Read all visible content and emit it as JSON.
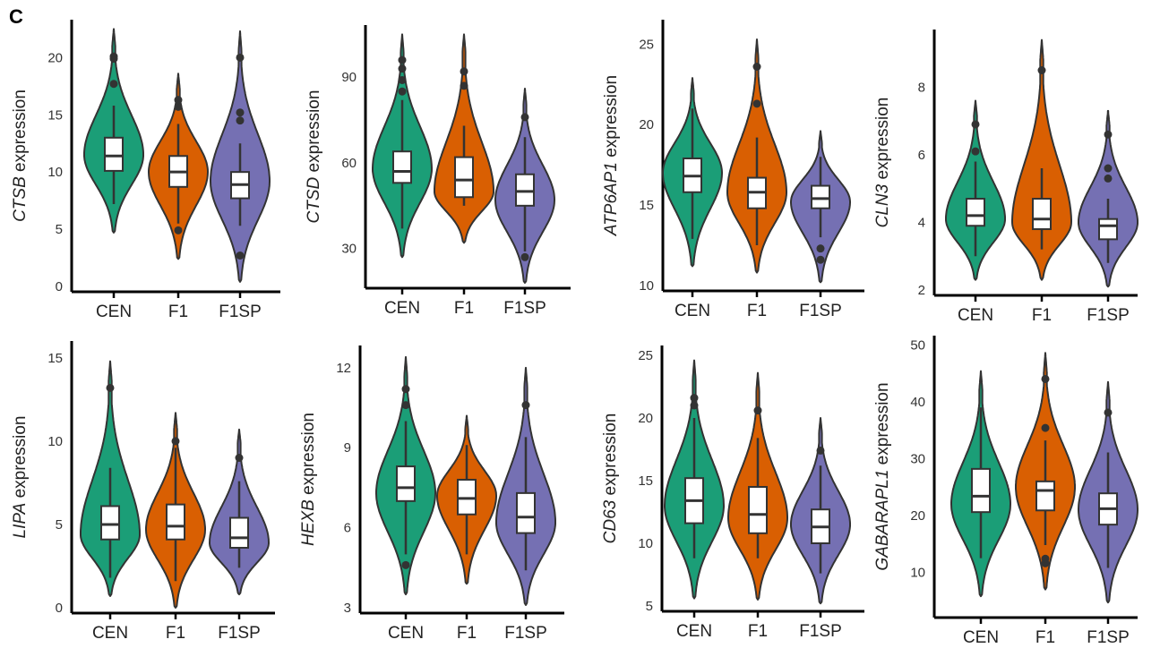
{
  "figure": {
    "panel_letter": "C"
  },
  "chart_data": [
    {
      "type": "violin",
      "gene": "CTSB",
      "ylabel_suffix": " expression",
      "categories": [
        "CEN",
        "F1",
        "F1SP"
      ],
      "yticks": [
        0,
        5,
        10,
        15,
        20
      ],
      "ylim": [
        0,
        23
      ],
      "colors": [
        "#1B9E77",
        "#D95F02",
        "#7570B3"
      ],
      "groups": [
        {
          "name": "CEN",
          "min": 4.7,
          "max": 22.5,
          "q1": 10.1,
          "median": 11.4,
          "q3": 13.0,
          "whisker_low": 7.2,
          "whisker_high": 15.8,
          "widest": 11.5,
          "outliers": [
            17.7,
            19.9,
            20.1
          ]
        },
        {
          "name": "F1",
          "min": 2.4,
          "max": 18.6,
          "q1": 8.7,
          "median": 10.0,
          "q3": 11.4,
          "whisker_low": 5.5,
          "whisker_high": 14.2,
          "widest": 10.0,
          "outliers": [
            4.9,
            15.7,
            16.3
          ]
        },
        {
          "name": "F1SP",
          "min": 0.4,
          "max": 22.3,
          "q1": 7.7,
          "median": 8.9,
          "q3": 10.0,
          "whisker_low": 5.3,
          "whisker_high": 12.5,
          "widest": 9.2,
          "outliers": [
            2.7,
            14.5,
            15.2,
            20.0
          ]
        }
      ]
    },
    {
      "type": "violin",
      "gene": "CTSD",
      "ylabel_suffix": " expression",
      "categories": [
        "CEN",
        "F1",
        "F1SP"
      ],
      "yticks": [
        30,
        60,
        90
      ],
      "ylim": [
        18,
        107
      ],
      "colors": [
        "#1B9E77",
        "#D95F02",
        "#7570B3"
      ],
      "groups": [
        {
          "name": "CEN",
          "min": 27,
          "max": 105,
          "q1": 53,
          "median": 57,
          "q3": 64,
          "whisker_low": 37,
          "whisker_high": 82,
          "widest": 58,
          "outliers": [
            85,
            89,
            93,
            96
          ]
        },
        {
          "name": "F1",
          "min": 32,
          "max": 105,
          "q1": 48,
          "median": 54,
          "q3": 62,
          "whisker_low": 45,
          "whisker_high": 73,
          "widest": 50,
          "outliers": [
            87,
            92
          ]
        },
        {
          "name": "F1SP",
          "min": 18,
          "max": 86,
          "q1": 45,
          "median": 50,
          "q3": 56,
          "whisker_low": 29,
          "whisker_high": 69,
          "widest": 47,
          "outliers": [
            27,
            76
          ]
        }
      ]
    },
    {
      "type": "violin",
      "gene": "ATP6AP1",
      "ylabel_suffix": " expression",
      "categories": [
        "CEN",
        "F1",
        "F1SP"
      ],
      "yticks": [
        10,
        15,
        20,
        25
      ],
      "ylim": [
        10,
        26.3
      ],
      "colors": [
        "#1B9E77",
        "#D95F02",
        "#7570B3"
      ],
      "groups": [
        {
          "name": "CEN",
          "min": 11.2,
          "max": 22.9,
          "q1": 15.8,
          "median": 16.8,
          "q3": 17.9,
          "whisker_low": 12.9,
          "whisker_high": 21.0,
          "widest": 17.0,
          "outliers": []
        },
        {
          "name": "F1",
          "min": 10.8,
          "max": 25.3,
          "q1": 14.8,
          "median": 15.8,
          "q3": 16.7,
          "whisker_low": 12.5,
          "whisker_high": 19.2,
          "widest": 15.8,
          "outliers": [
            21.3,
            23.6
          ]
        },
        {
          "name": "F1SP",
          "min": 10.2,
          "max": 19.6,
          "q1": 14.8,
          "median": 15.4,
          "q3": 16.2,
          "whisker_low": 13.0,
          "whisker_high": 18.0,
          "widest": 15.2,
          "outliers": [
            11.6,
            12.3
          ]
        }
      ]
    },
    {
      "type": "violin",
      "gene": "CLN3",
      "ylabel_suffix": " expression",
      "categories": [
        "CEN",
        "F1",
        "F1SP"
      ],
      "yticks": [
        2,
        4,
        6,
        8
      ],
      "ylim": [
        2,
        9.6
      ],
      "colors": [
        "#1B9E77",
        "#D95F02",
        "#7570B3"
      ],
      "groups": [
        {
          "name": "CEN",
          "min": 2.3,
          "max": 7.6,
          "q1": 3.9,
          "median": 4.2,
          "q3": 4.7,
          "whisker_low": 3.0,
          "whisker_high": 5.8,
          "widest": 4.1,
          "outliers": [
            6.1,
            6.9
          ]
        },
        {
          "name": "F1",
          "min": 2.3,
          "max": 9.4,
          "q1": 3.8,
          "median": 4.1,
          "q3": 4.7,
          "whisker_low": 3.2,
          "whisker_high": 5.6,
          "widest": 4.0,
          "outliers": [
            8.5
          ]
        },
        {
          "name": "F1SP",
          "min": 2.1,
          "max": 7.3,
          "q1": 3.5,
          "median": 3.9,
          "q3": 4.1,
          "whisker_low": 2.8,
          "whisker_high": 4.7,
          "widest": 4.0,
          "outliers": [
            5.3,
            5.6,
            6.6
          ]
        }
      ]
    },
    {
      "type": "violin",
      "gene": "LIPA",
      "ylabel_suffix": " expression",
      "categories": [
        "CEN",
        "F1",
        "F1SP"
      ],
      "yticks": [
        0,
        5,
        10,
        15
      ],
      "ylim": [
        0,
        15.8
      ],
      "colors": [
        "#1B9E77",
        "#D95F02",
        "#7570B3"
      ],
      "groups": [
        {
          "name": "CEN",
          "min": 0.7,
          "max": 14.8,
          "q1": 4.1,
          "median": 5.0,
          "q3": 6.1,
          "whisker_low": 1.8,
          "whisker_high": 8.4,
          "widest": 4.4,
          "outliers": [
            13.2
          ]
        },
        {
          "name": "F1",
          "min": 0.0,
          "max": 11.7,
          "q1": 4.1,
          "median": 4.9,
          "q3": 6.2,
          "whisker_low": 1.6,
          "whisker_high": 9.6,
          "widest": 4.7,
          "outliers": [
            10.0
          ]
        },
        {
          "name": "F1SP",
          "min": 0.8,
          "max": 10.7,
          "q1": 3.6,
          "median": 4.2,
          "q3": 5.4,
          "whisker_low": 2.4,
          "whisker_high": 7.6,
          "widest": 3.9,
          "outliers": [
            9.0
          ]
        }
      ]
    },
    {
      "type": "violin",
      "gene": "HEXB",
      "ylabel_suffix": " expression",
      "categories": [
        "CEN",
        "F1",
        "F1SP"
      ],
      "yticks": [
        3,
        6,
        9,
        12
      ],
      "ylim": [
        3,
        12.7
      ],
      "colors": [
        "#1B9E77",
        "#D95F02",
        "#7570B3"
      ],
      "groups": [
        {
          "name": "CEN",
          "min": 3.5,
          "max": 12.4,
          "q1": 7.0,
          "median": 7.5,
          "q3": 8.3,
          "whisker_low": 5.0,
          "whisker_high": 10.0,
          "widest": 7.3,
          "outliers": [
            4.6,
            10.6,
            11.2
          ]
        },
        {
          "name": "F1",
          "min": 3.9,
          "max": 10.2,
          "q1": 6.5,
          "median": 7.1,
          "q3": 7.8,
          "whisker_low": 5.0,
          "whisker_high": 9.1,
          "widest": 7.2,
          "outliers": []
        },
        {
          "name": "F1SP",
          "min": 3.1,
          "max": 12.0,
          "q1": 5.8,
          "median": 6.4,
          "q3": 7.3,
          "whisker_low": 4.4,
          "whisker_high": 9.4,
          "widest": 6.2,
          "outliers": [
            10.6
          ]
        }
      ]
    },
    {
      "type": "violin",
      "gene": "CD63",
      "ylabel_suffix": " expression",
      "categories": [
        "CEN",
        "F1",
        "F1SP"
      ],
      "yticks": [
        5,
        10,
        15,
        20,
        25
      ],
      "ylim": [
        5,
        25.5
      ],
      "colors": [
        "#1B9E77",
        "#D95F02",
        "#7570B3"
      ],
      "groups": [
        {
          "name": "CEN",
          "min": 5.6,
          "max": 24.6,
          "q1": 11.6,
          "median": 13.4,
          "q3": 15.2,
          "whisker_low": 8.8,
          "whisker_high": 20.0,
          "widest": 13.0,
          "outliers": [
            21.0,
            21.6
          ]
        },
        {
          "name": "F1",
          "min": 5.5,
          "max": 23.6,
          "q1": 10.8,
          "median": 12.3,
          "q3": 14.5,
          "whisker_low": 8.8,
          "whisker_high": 18.4,
          "widest": 12.0,
          "outliers": [
            20.6
          ]
        },
        {
          "name": "F1SP",
          "min": 5.2,
          "max": 20.0,
          "q1": 10.0,
          "median": 11.3,
          "q3": 12.7,
          "whisker_low": 7.6,
          "whisker_high": 16.2,
          "widest": 11.5,
          "outliers": [
            17.4
          ]
        }
      ]
    },
    {
      "type": "violin",
      "gene": "GABARAPL1",
      "ylabel_suffix": " expression",
      "categories": [
        "CEN",
        "F1",
        "F1SP"
      ],
      "yticks": [
        10,
        20,
        30,
        40,
        50
      ],
      "ylim": [
        3,
        51
      ],
      "colors": [
        "#1B9E77",
        "#D95F02",
        "#7570B3"
      ],
      "groups": [
        {
          "name": "CEN",
          "min": 5.8,
          "max": 45.4,
          "q1": 20.6,
          "median": 23.4,
          "q3": 28.2,
          "whisker_low": 12.5,
          "whisker_high": 39.0,
          "widest": 22.0,
          "outliers": []
        },
        {
          "name": "F1",
          "min": 7.0,
          "max": 48.6,
          "q1": 20.9,
          "median": 24.4,
          "q3": 26.0,
          "whisker_low": 14.8,
          "whisker_high": 33.2,
          "widest": 25.0,
          "outliers": [
            11.6,
            12.4,
            35.4,
            44.0
          ]
        },
        {
          "name": "F1SP",
          "min": 4.7,
          "max": 43.5,
          "q1": 18.4,
          "median": 21.2,
          "q3": 23.9,
          "whisker_low": 10.8,
          "whisker_high": 31.1,
          "widest": 21.0,
          "outliers": [
            38.1
          ]
        }
      ]
    }
  ]
}
